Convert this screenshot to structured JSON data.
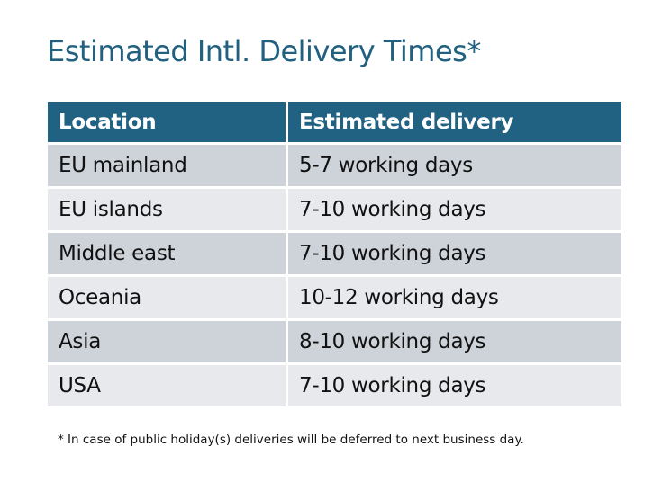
{
  "title": "Estimated Intl. Delivery Times*",
  "table": {
    "headers": [
      "Location",
      "Estimated delivery"
    ],
    "rows": [
      [
        "EU mainland",
        "5-7 working days"
      ],
      [
        "EU islands",
        "7-10 working days"
      ],
      [
        "Middle east",
        "7-10 working days"
      ],
      [
        "Oceania",
        "10-12 working days"
      ],
      [
        "Asia",
        "8-10 working days"
      ],
      [
        "USA",
        "7-10 working days"
      ]
    ]
  },
  "footnote": "* In case of public holiday(s) deliveries will be deferred to next business day.",
  "colors": {
    "header": "#216283",
    "title": "#21607f",
    "row_dark": "#ced2d9",
    "row_light": "#e7e9ec"
  }
}
